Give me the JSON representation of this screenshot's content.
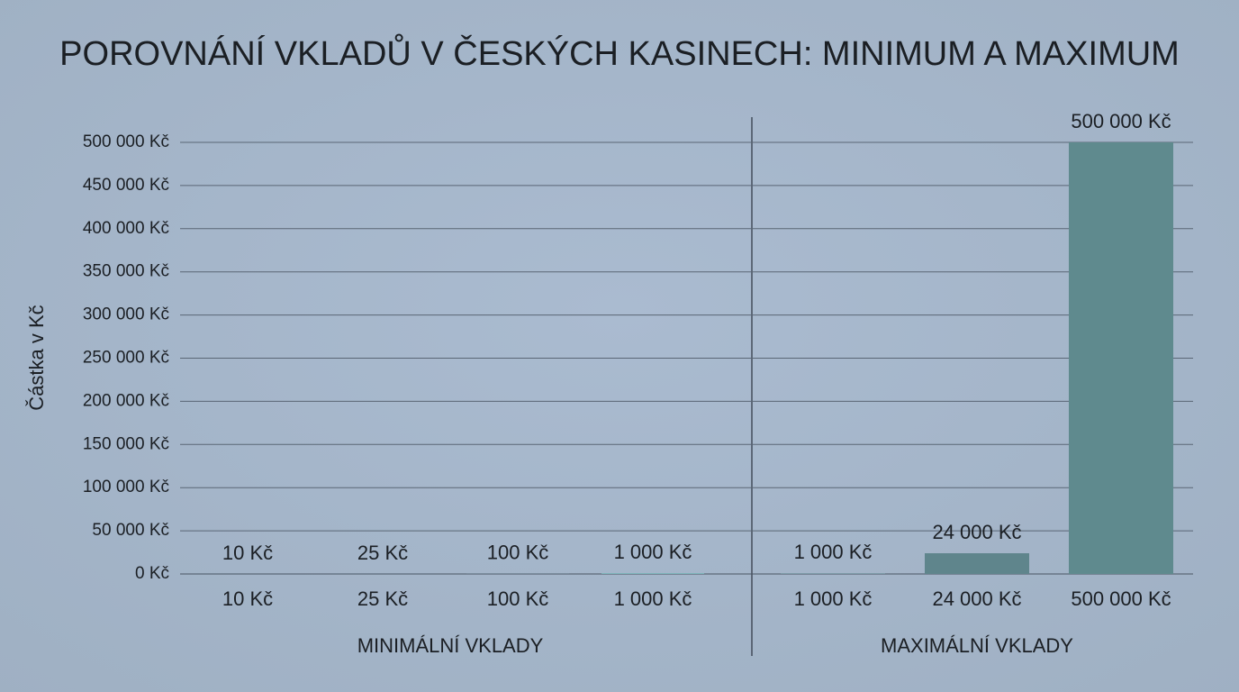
{
  "chart_data": {
    "type": "grouped-bar",
    "title": "POROVNÁNÍ VKLADŮ V ČESKÝCH KASINECH: MINIMUM A MAXIMUM",
    "y_label": "Částka v Kč",
    "ylim": [
      0,
      500000
    ],
    "yticks": [
      {
        "value": 0,
        "label": "0 Kč"
      },
      {
        "value": 50000,
        "label": "50 000 Kč"
      },
      {
        "value": 100000,
        "label": "100 000 Kč"
      },
      {
        "value": 150000,
        "label": "150 000 Kč"
      },
      {
        "value": 200000,
        "label": "200 000 Kč"
      },
      {
        "value": 250000,
        "label": "250 000 Kč"
      },
      {
        "value": 300000,
        "label": "300 000 Kč"
      },
      {
        "value": 350000,
        "label": "350 000 Kč"
      },
      {
        "value": 400000,
        "label": "400 000 Kč"
      },
      {
        "value": 450000,
        "label": "450 000 Kč"
      },
      {
        "value": 500000,
        "label": "500 000 Kč"
      }
    ],
    "grid": true,
    "groups": [
      {
        "name": "MINIMÁLNÍ VKLADY",
        "categories": [
          "10 Kč",
          "25 Kč",
          "100 Kč",
          "1 000 Kč"
        ],
        "values": [
          10,
          25,
          100,
          1000
        ],
        "value_labels": [
          "10 Kč",
          "25 Kč",
          "100 Kč",
          "1 000 Kč"
        ],
        "colors": [
          "#18878f",
          "#4c9fa5",
          "#6aa9ae",
          "#7db4b9"
        ]
      },
      {
        "name": "MAXIMÁLNÍ VKLADY",
        "categories": [
          "1 000 Kč",
          "24 000 Kč",
          "500 000 Kč"
        ],
        "values": [
          1000,
          24000,
          500000
        ],
        "value_labels": [
          "1 000 Kč",
          "24 000 Kč",
          "500 000 Kč"
        ],
        "colors": [
          "#7d9aa6",
          "#5f858c",
          "#5f8a8e"
        ]
      }
    ]
  }
}
